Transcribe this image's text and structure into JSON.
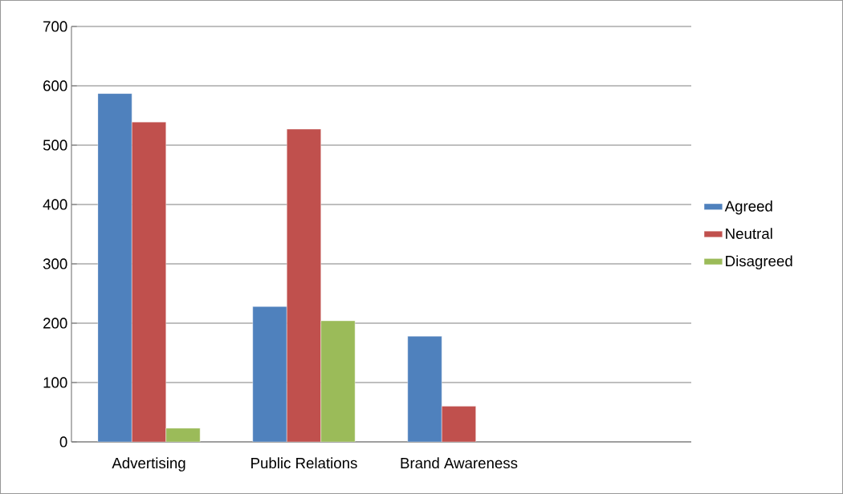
{
  "chart_data": {
    "type": "bar",
    "categories": [
      "Advertising",
      "Public Relations",
      "Brand Awareness",
      null
    ],
    "series": [
      {
        "name": "Agreed",
        "color": "#4f81bd",
        "values": [
          587,
          228,
          178,
          null
        ]
      },
      {
        "name": "Neutral",
        "color": "#c0504d",
        "values": [
          539,
          527,
          60,
          null
        ]
      },
      {
        "name": "Disagreed",
        "color": "#9bbb59",
        "values": [
          23,
          204,
          null,
          null
        ]
      }
    ],
    "ylim": [
      0,
      700
    ],
    "yticks": [
      0,
      100,
      200,
      300,
      400,
      500,
      600,
      700
    ],
    "grid": "y",
    "legend": "right"
  }
}
